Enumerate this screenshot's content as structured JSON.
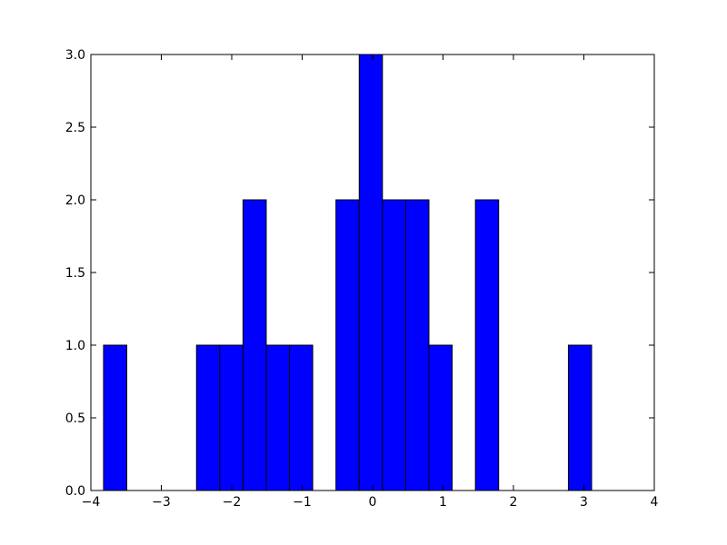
{
  "chart_data": {
    "type": "histogram",
    "bins": [
      -3.82,
      -3.49,
      -3.16,
      -2.83,
      -2.5,
      -2.17,
      -1.84,
      -1.51,
      -1.18,
      -0.85,
      -0.52,
      -0.19,
      0.14,
      0.47,
      0.8,
      1.13,
      1.46,
      1.79,
      2.12,
      2.45,
      2.78,
      3.11
    ],
    "values": [
      1,
      0,
      0,
      0,
      1,
      1,
      2,
      1,
      1,
      0,
      2,
      3,
      2,
      2,
      1,
      0,
      2,
      0,
      0,
      0,
      1
    ],
    "color": "#0000ff",
    "edgecolor": "#000000",
    "xlim": [
      -4,
      4
    ],
    "xticks": [
      {
        "value": -4,
        "label": "−4"
      },
      {
        "value": -3,
        "label": "−3"
      },
      {
        "value": -2,
        "label": "−2"
      },
      {
        "value": -1,
        "label": "−1"
      },
      0,
      1,
      2,
      3,
      4
    ],
    "ylim": [
      0,
      3
    ],
    "yticks": [
      {
        "value": 0,
        "label": "0.0"
      },
      0.5,
      {
        "value": 1,
        "label": "1.0"
      },
      1.5,
      {
        "value": 2,
        "label": "2.0"
      },
      2.5,
      {
        "value": 3,
        "label": "3.0"
      }
    ],
    "grid": false
  }
}
